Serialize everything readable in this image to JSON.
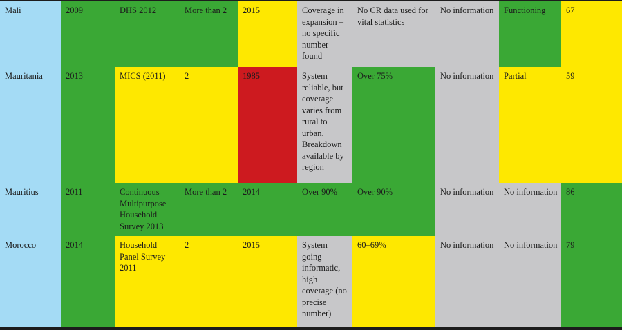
{
  "palette": {
    "green": "#3aa835",
    "yellow": "#fee800",
    "red": "#cd1a1f",
    "blue": "#a4dbf5",
    "gray": "#c7c7c9",
    "border": "#1c1c1c",
    "text": "#1c1c1c"
  },
  "table": {
    "rows": [
      {
        "country": "Mali",
        "cells": [
          {
            "text": "Mali",
            "color": "blue"
          },
          {
            "text": "2009",
            "color": "green"
          },
          {
            "text": "DHS 2012",
            "color": "green"
          },
          {
            "text": "More than 2",
            "color": "green"
          },
          {
            "text": "2015",
            "color": "yellow"
          },
          {
            "text": "Coverage in expansion – no specific number found",
            "color": "gray"
          },
          {
            "text": "No CR data used for vital statistics",
            "color": "gray"
          },
          {
            "text": "No information",
            "color": "gray"
          },
          {
            "text": "Functioning",
            "color": "green"
          },
          {
            "text": "67",
            "color": "yellow"
          }
        ]
      },
      {
        "country": "Mauritania",
        "cells": [
          {
            "text": "Mauritania",
            "color": "blue"
          },
          {
            "text": "2013",
            "color": "green"
          },
          {
            "text": "MICS (2011)",
            "color": "yellow"
          },
          {
            "text": "2",
            "color": "yellow"
          },
          {
            "text": "1985",
            "color": "red"
          },
          {
            "text": "System reliable, but coverage varies from rural to urban. Breakdown available by region",
            "color": "gray"
          },
          {
            "text": "Over 75%",
            "color": "green"
          },
          {
            "text": "No information",
            "color": "gray"
          },
          {
            "text": "Partial",
            "color": "yellow"
          },
          {
            "text": "59",
            "color": "yellow"
          }
        ]
      },
      {
        "country": "Mauritius",
        "cells": [
          {
            "text": "Mauritius",
            "color": "blue"
          },
          {
            "text": "2011",
            "color": "green"
          },
          {
            "text": "Continuous Multipurpose Household Survey 2013",
            "color": "green"
          },
          {
            "text": "More than 2",
            "color": "green"
          },
          {
            "text": "2014",
            "color": "green"
          },
          {
            "text": "Over 90%",
            "color": "green"
          },
          {
            "text": "Over 90%",
            "color": "green"
          },
          {
            "text": "No information",
            "color": "gray"
          },
          {
            "text": "No information",
            "color": "gray"
          },
          {
            "text": "86",
            "color": "green"
          }
        ]
      },
      {
        "country": "Morocco",
        "cells": [
          {
            "text": "Morocco",
            "color": "blue"
          },
          {
            "text": "2014",
            "color": "green"
          },
          {
            "text": "Household Panel Survey 2011",
            "color": "yellow"
          },
          {
            "text": "2",
            "color": "yellow"
          },
          {
            "text": "2015",
            "color": "yellow"
          },
          {
            "text": "System going informatic, high coverage (no precise number)",
            "color": "gray"
          },
          {
            "text": "60–69%",
            "color": "yellow"
          },
          {
            "text": "No information",
            "color": "gray"
          },
          {
            "text": "No information",
            "color": "gray"
          },
          {
            "text": "79",
            "color": "green"
          }
        ]
      }
    ]
  }
}
